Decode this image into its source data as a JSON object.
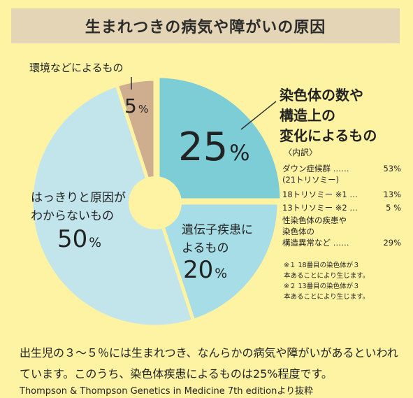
{
  "title": "生まれつきの病気や障がいの原因",
  "chart_data": {
    "type": "pie",
    "categories": [
      "染色体の数や構造上の変化によるもの",
      "遺伝子疾患によるもの",
      "はっきりと原因がわからないもの",
      "環境などによるもの"
    ],
    "values": [
      25,
      20,
      50,
      5
    ],
    "unit": "%",
    "colors": [
      "#7ccdd6",
      "#a7dde6",
      "#c2e5ec",
      "#cfae90"
    ]
  },
  "segments": {
    "chrom": {
      "label": "染色体の数や\n構造上の\n変化によるもの",
      "value": "25",
      "unit": "%"
    },
    "gene": {
      "label": "遺伝子疾患に\nよるもの",
      "value": "20",
      "unit": "%"
    },
    "unknown": {
      "label": "はっきりと原因が\nわからないもの",
      "value": "50",
      "unit": "%"
    },
    "env": {
      "label": "環境などによるもの",
      "value": "5",
      "unit": "%"
    }
  },
  "breakdown": {
    "title": "〈内訳〉",
    "rows": [
      {
        "name": "ダウン症候群 ……\n(21トリソミー)",
        "value": "53%"
      },
      {
        "name": "18トリソミー ※1 …",
        "value": "13%"
      },
      {
        "name": "13トリソミー ※2 …",
        "value": "5 %"
      },
      {
        "name": "性染色体の疾患や\n染色体の\n構造異常など ……",
        "value": "29%"
      }
    ],
    "notes": [
      "※１ 18番目の染色体が３\n本あることにより生じます。",
      "※２ 13番目の染色体が３\n本あることにより生じます。"
    ]
  },
  "footer": {
    "text": "出生児の３～５％には生まれつき、なんらかの病気や障がいがあるといわれています。このうち、染色体疾患によるものは25%程度です。",
    "source": "Thompson & Thompson Genetics in Medicine 7th editionより抜粋"
  }
}
